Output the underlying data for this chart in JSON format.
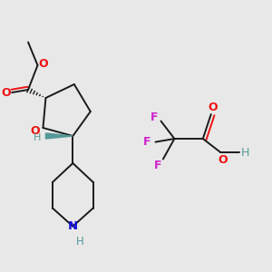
{
  "background_color": "#e8e8e8",
  "figure_size": [
    3.0,
    3.0
  ],
  "dpi": 100,
  "lw": 1.4,
  "colors": {
    "bond": "#1a1a1a",
    "O": "#ee1111",
    "N": "#1111dd",
    "F": "#cc22cc",
    "H": "#559999",
    "wedge": "#559999"
  }
}
